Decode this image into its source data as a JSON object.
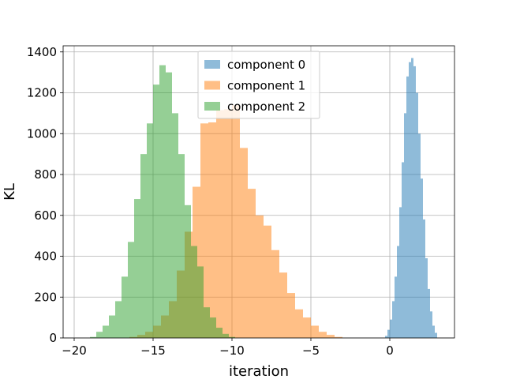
{
  "chart_data": {
    "type": "histogram",
    "title": "",
    "xlabel": "iteration",
    "ylabel": "KL",
    "xlim": [
      -20.7,
      4.1
    ],
    "ylim": [
      0,
      1430
    ],
    "xticks": [
      -20,
      -15,
      -10,
      -5,
      0
    ],
    "yticks": [
      0,
      200,
      400,
      600,
      800,
      1000,
      1200,
      1400
    ],
    "grid": true,
    "legend_position": "upper-center",
    "bar_opacity": 0.5,
    "series": [
      {
        "name": "component 0",
        "color": "#1f77b4",
        "bin_start": -0.3,
        "bin_width": 0.15,
        "counts": [
          10,
          40,
          90,
          180,
          300,
          450,
          640,
          860,
          1100,
          1280,
          1350,
          1370,
          1330,
          1200,
          1000,
          780,
          580,
          390,
          240,
          130,
          60,
          25
        ]
      },
      {
        "name": "component 1",
        "color": "#ff7f0e",
        "bin_start": -16.5,
        "bin_width": 0.5,
        "counts": [
          5,
          15,
          30,
          60,
          110,
          180,
          330,
          520,
          740,
          1050,
          1055,
          1115,
          1120,
          1140,
          930,
          730,
          600,
          550,
          430,
          320,
          220,
          140,
          100,
          60,
          30,
          15,
          5
        ]
      },
      {
        "name": "component 2",
        "color": "#2ca02c",
        "bin_start": -19,
        "bin_width": 0.4,
        "counts": [
          5,
          30,
          60,
          110,
          180,
          300,
          470,
          680,
          900,
          1050,
          1240,
          1335,
          1300,
          1100,
          900,
          650,
          450,
          350,
          150,
          100,
          50,
          20,
          5
        ]
      }
    ]
  }
}
